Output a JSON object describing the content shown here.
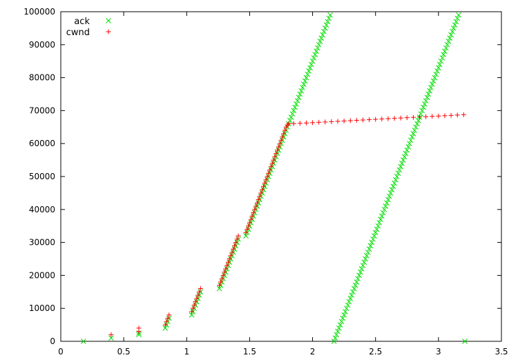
{
  "chart_data": {
    "type": "scatter",
    "title": "",
    "xlabel": "",
    "ylabel": "",
    "xlim": [
      0,
      3.5
    ],
    "ylim": [
      0,
      100000
    ],
    "x_ticks": [
      "0",
      "0.5",
      "1",
      "1.5",
      "2",
      "2.5",
      "3",
      "3.5"
    ],
    "y_ticks": [
      "0",
      "10000",
      "20000",
      "30000",
      "40000",
      "50000",
      "60000",
      "70000",
      "80000",
      "90000",
      "100000"
    ],
    "x_tick_values": [
      0,
      0.5,
      1,
      1.5,
      2,
      2.5,
      3,
      3.5
    ],
    "y_tick_values": [
      0,
      10000,
      20000,
      30000,
      40000,
      50000,
      60000,
      70000,
      80000,
      90000,
      100000
    ],
    "grid": false,
    "legend_position": "top-left",
    "series": [
      {
        "name": "ack",
        "marker": "x",
        "color": "#00dd00",
        "points": [
          [
            0.18,
            0
          ],
          [
            0.4,
            1000
          ],
          [
            0.62,
            2000
          ],
          [
            0.62,
            2500
          ],
          [
            0.83,
            4000
          ],
          [
            0.84,
            5000
          ],
          [
            0.85,
            6000
          ],
          [
            0.86,
            7000
          ],
          [
            1.04,
            8000
          ],
          [
            1.05,
            9000
          ],
          [
            1.06,
            10000
          ],
          [
            1.07,
            11000
          ],
          [
            1.08,
            12000
          ],
          [
            1.09,
            13000
          ],
          [
            1.1,
            14000
          ],
          [
            1.11,
            15000
          ],
          [
            1.26,
            16000
          ],
          [
            1.27,
            17000
          ],
          [
            1.28,
            18000
          ],
          [
            1.29,
            19000
          ],
          [
            1.3,
            20000
          ],
          [
            1.31,
            21000
          ],
          [
            1.32,
            22000
          ],
          [
            1.33,
            23000
          ],
          [
            1.34,
            24000
          ],
          [
            1.35,
            25000
          ],
          [
            1.36,
            26000
          ],
          [
            1.37,
            27000
          ],
          [
            1.38,
            28000
          ],
          [
            1.39,
            29000
          ],
          [
            1.4,
            30000
          ],
          [
            1.41,
            31000
          ],
          [
            1.47,
            32000
          ],
          [
            1.48,
            33000
          ],
          [
            1.49,
            34000
          ],
          [
            1.5,
            35000
          ],
          [
            1.51,
            36000
          ],
          [
            1.52,
            37000
          ],
          [
            1.53,
            38000
          ],
          [
            1.54,
            39000
          ],
          [
            1.55,
            40000
          ],
          [
            1.56,
            41000
          ],
          [
            1.57,
            42000
          ],
          [
            1.58,
            43000
          ],
          [
            1.59,
            44000
          ],
          [
            1.6,
            45000
          ],
          [
            1.61,
            46000
          ],
          [
            1.62,
            47000
          ],
          [
            1.63,
            48000
          ],
          [
            1.64,
            49000
          ],
          [
            1.65,
            50000
          ],
          [
            1.66,
            51000
          ],
          [
            1.67,
            52000
          ],
          [
            1.68,
            53000
          ],
          [
            1.69,
            54000
          ],
          [
            1.7,
            55000
          ],
          [
            1.71,
            56000
          ],
          [
            1.72,
            57000
          ],
          [
            1.73,
            58000
          ],
          [
            1.74,
            59000
          ],
          [
            1.75,
            60000
          ],
          [
            1.76,
            61000
          ],
          [
            1.77,
            62000
          ],
          [
            1.78,
            63000
          ],
          [
            1.79,
            64000
          ],
          [
            1.8,
            65000
          ],
          [
            1.81,
            66000
          ],
          [
            1.82,
            67000
          ],
          [
            1.83,
            68000
          ],
          [
            1.84,
            69000
          ],
          [
            1.85,
            70000
          ],
          [
            1.86,
            71000
          ],
          [
            1.87,
            72000
          ],
          [
            1.88,
            73000
          ],
          [
            1.89,
            74000
          ],
          [
            1.9,
            75000
          ],
          [
            1.91,
            76000
          ],
          [
            1.92,
            77000
          ],
          [
            1.93,
            78000
          ],
          [
            1.94,
            79000
          ],
          [
            1.95,
            80000
          ],
          [
            1.96,
            81000
          ],
          [
            1.97,
            82000
          ],
          [
            1.98,
            83000
          ],
          [
            1.99,
            84000
          ],
          [
            2.0,
            85000
          ],
          [
            2.01,
            86000
          ],
          [
            2.02,
            87000
          ],
          [
            2.03,
            88000
          ],
          [
            2.04,
            89000
          ],
          [
            2.05,
            90000
          ],
          [
            2.06,
            91000
          ],
          [
            2.07,
            92000
          ],
          [
            2.08,
            93000
          ],
          [
            2.09,
            94000
          ],
          [
            2.1,
            95000
          ],
          [
            2.11,
            96000
          ],
          [
            2.12,
            97000
          ],
          [
            2.13,
            98000
          ],
          [
            2.14,
            99000
          ],
          [
            2.17,
            0
          ],
          [
            2.18,
            1000
          ],
          [
            2.19,
            2000
          ],
          [
            2.2,
            3000
          ],
          [
            2.21,
            4000
          ],
          [
            2.22,
            5000
          ],
          [
            2.23,
            6000
          ],
          [
            2.24,
            7000
          ],
          [
            2.25,
            8000
          ],
          [
            2.26,
            9000
          ],
          [
            2.27,
            10000
          ],
          [
            2.28,
            11000
          ],
          [
            2.29,
            12000
          ],
          [
            2.3,
            13000
          ],
          [
            2.31,
            14000
          ],
          [
            2.32,
            15000
          ],
          [
            2.33,
            16000
          ],
          [
            2.34,
            17000
          ],
          [
            2.35,
            18000
          ],
          [
            2.36,
            19000
          ],
          [
            2.37,
            20000
          ],
          [
            2.38,
            21000
          ],
          [
            2.39,
            22000
          ],
          [
            2.4,
            23000
          ],
          [
            2.41,
            24000
          ],
          [
            2.42,
            25000
          ],
          [
            2.43,
            26000
          ],
          [
            2.44,
            27000
          ],
          [
            2.45,
            28000
          ],
          [
            2.46,
            29000
          ],
          [
            2.47,
            30000
          ],
          [
            2.48,
            31000
          ],
          [
            2.49,
            32000
          ],
          [
            2.5,
            33000
          ],
          [
            2.51,
            34000
          ],
          [
            2.52,
            35000
          ],
          [
            2.53,
            36000
          ],
          [
            2.54,
            37000
          ],
          [
            2.55,
            38000
          ],
          [
            2.56,
            39000
          ],
          [
            2.57,
            40000
          ],
          [
            2.58,
            41000
          ],
          [
            2.59,
            42000
          ],
          [
            2.6,
            43000
          ],
          [
            2.61,
            44000
          ],
          [
            2.62,
            45000
          ],
          [
            2.63,
            46000
          ],
          [
            2.64,
            47000
          ],
          [
            2.65,
            48000
          ],
          [
            2.66,
            49000
          ],
          [
            2.67,
            50000
          ],
          [
            2.68,
            51000
          ],
          [
            2.69,
            52000
          ],
          [
            2.7,
            53000
          ],
          [
            2.71,
            54000
          ],
          [
            2.72,
            55000
          ],
          [
            2.73,
            56000
          ],
          [
            2.74,
            57000
          ],
          [
            2.75,
            58000
          ],
          [
            2.76,
            59000
          ],
          [
            2.77,
            60000
          ],
          [
            2.78,
            61000
          ],
          [
            2.79,
            62000
          ],
          [
            2.8,
            63000
          ],
          [
            2.81,
            64000
          ],
          [
            2.82,
            65000
          ],
          [
            2.83,
            66000
          ],
          [
            2.84,
            67000
          ],
          [
            2.85,
            68000
          ],
          [
            2.86,
            69000
          ],
          [
            2.87,
            70000
          ],
          [
            2.88,
            71000
          ],
          [
            2.89,
            72000
          ],
          [
            2.9,
            73000
          ],
          [
            2.91,
            74000
          ],
          [
            2.92,
            75000
          ],
          [
            2.93,
            76000
          ],
          [
            2.94,
            77000
          ],
          [
            2.95,
            78000
          ],
          [
            2.96,
            79000
          ],
          [
            2.97,
            80000
          ],
          [
            2.98,
            81000
          ],
          [
            2.99,
            82000
          ],
          [
            3.0,
            83000
          ],
          [
            3.01,
            84000
          ],
          [
            3.02,
            85000
          ],
          [
            3.03,
            86000
          ],
          [
            3.04,
            87000
          ],
          [
            3.05,
            88000
          ],
          [
            3.06,
            89000
          ],
          [
            3.07,
            90000
          ],
          [
            3.08,
            91000
          ],
          [
            3.09,
            92000
          ],
          [
            3.1,
            93000
          ],
          [
            3.11,
            94000
          ],
          [
            3.12,
            95000
          ],
          [
            3.13,
            96000
          ],
          [
            3.14,
            97000
          ],
          [
            3.15,
            98000
          ],
          [
            3.16,
            99000
          ],
          [
            3.21,
            0
          ]
        ]
      },
      {
        "name": "cwnd",
        "marker": "+",
        "color": "#ff0000",
        "points": [
          [
            0.4,
            2000
          ],
          [
            0.62,
            3000
          ],
          [
            0.62,
            4000
          ],
          [
            0.83,
            5000
          ],
          [
            0.84,
            6000
          ],
          [
            0.85,
            7000
          ],
          [
            0.86,
            8000
          ],
          [
            1.04,
            9000
          ],
          [
            1.05,
            10000
          ],
          [
            1.06,
            11000
          ],
          [
            1.07,
            12000
          ],
          [
            1.08,
            13000
          ],
          [
            1.09,
            14000
          ],
          [
            1.1,
            15000
          ],
          [
            1.11,
            16000
          ],
          [
            1.26,
            17000
          ],
          [
            1.27,
            18000
          ],
          [
            1.28,
            19000
          ],
          [
            1.29,
            20000
          ],
          [
            1.3,
            21000
          ],
          [
            1.31,
            22000
          ],
          [
            1.32,
            23000
          ],
          [
            1.33,
            24000
          ],
          [
            1.34,
            25000
          ],
          [
            1.35,
            26000
          ],
          [
            1.36,
            27000
          ],
          [
            1.37,
            28000
          ],
          [
            1.38,
            29000
          ],
          [
            1.39,
            30000
          ],
          [
            1.4,
            31000
          ],
          [
            1.41,
            32000
          ],
          [
            1.47,
            33000
          ],
          [
            1.48,
            34000
          ],
          [
            1.49,
            35000
          ],
          [
            1.5,
            36000
          ],
          [
            1.51,
            37000
          ],
          [
            1.52,
            38000
          ],
          [
            1.53,
            39000
          ],
          [
            1.54,
            40000
          ],
          [
            1.55,
            41000
          ],
          [
            1.56,
            42000
          ],
          [
            1.57,
            43000
          ],
          [
            1.58,
            44000
          ],
          [
            1.59,
            45000
          ],
          [
            1.6,
            46000
          ],
          [
            1.61,
            47000
          ],
          [
            1.62,
            48000
          ],
          [
            1.63,
            49000
          ],
          [
            1.64,
            50000
          ],
          [
            1.65,
            51000
          ],
          [
            1.66,
            52000
          ],
          [
            1.67,
            53000
          ],
          [
            1.68,
            54000
          ],
          [
            1.69,
            55000
          ],
          [
            1.7,
            56000
          ],
          [
            1.71,
            57000
          ],
          [
            1.72,
            58000
          ],
          [
            1.73,
            59000
          ],
          [
            1.74,
            60000
          ],
          [
            1.75,
            61000
          ],
          [
            1.76,
            62000
          ],
          [
            1.77,
            63000
          ],
          [
            1.78,
            64000
          ],
          [
            1.79,
            65000
          ],
          [
            1.8,
            65600
          ],
          [
            1.81,
            66000
          ],
          [
            1.85,
            66050
          ],
          [
            1.9,
            66150
          ],
          [
            1.95,
            66250
          ],
          [
            2.0,
            66350
          ],
          [
            2.05,
            66450
          ],
          [
            2.1,
            66550
          ],
          [
            2.15,
            66650
          ],
          [
            2.2,
            66750
          ],
          [
            2.25,
            66850
          ],
          [
            2.3,
            66950
          ],
          [
            2.35,
            67050
          ],
          [
            2.4,
            67150
          ],
          [
            2.45,
            67250
          ],
          [
            2.5,
            67350
          ],
          [
            2.55,
            67450
          ],
          [
            2.6,
            67550
          ],
          [
            2.65,
            67650
          ],
          [
            2.7,
            67750
          ],
          [
            2.75,
            67850
          ],
          [
            2.8,
            67950
          ],
          [
            2.85,
            68050
          ],
          [
            2.9,
            68150
          ],
          [
            2.95,
            68250
          ],
          [
            3.0,
            68350
          ],
          [
            3.05,
            68450
          ],
          [
            3.1,
            68550
          ],
          [
            3.15,
            68650
          ],
          [
            3.2,
            68750
          ]
        ]
      }
    ]
  }
}
